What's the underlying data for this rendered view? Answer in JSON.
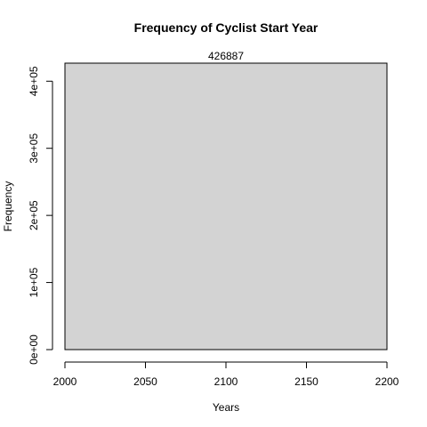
{
  "chart_data": {
    "type": "bar",
    "title": "Frequency of Cyclist Start Year",
    "xlabel": "Years",
    "ylabel": "Frequency",
    "xlim": [
      2000,
      2200
    ],
    "ylim": [
      0,
      426887
    ],
    "x_ticks": [
      2000,
      2050,
      2100,
      2150,
      2200
    ],
    "x_tick_labels": [
      "2000",
      "2050",
      "2100",
      "2150",
      "2200"
    ],
    "y_ticks": [
      0,
      100000,
      200000,
      300000,
      400000
    ],
    "y_tick_labels": [
      "0e+00",
      "1e+05",
      "2e+05",
      "3e+05",
      "4e+05"
    ],
    "bars": [
      {
        "x_start": 2000,
        "x_end": 2200,
        "value": 426887,
        "label": "426887"
      }
    ],
    "bar_color": "#d3d3d3",
    "bar_border_color": "#000000",
    "grid": false,
    "legend": "none"
  }
}
